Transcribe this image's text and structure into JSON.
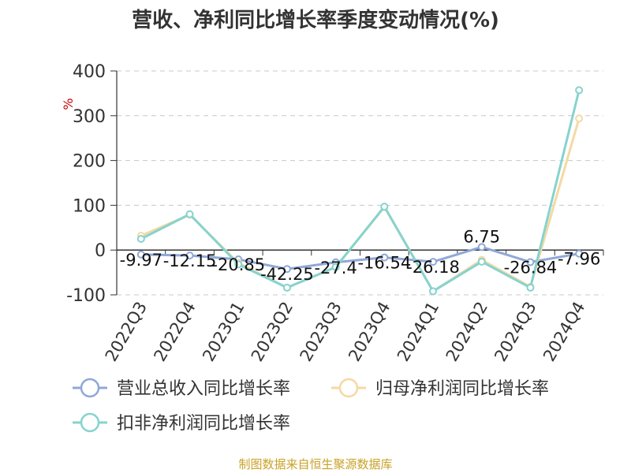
{
  "title": "营收、净利同比增长率季度变动情况(%)",
  "source": "制图数据来自恒生聚源数据库",
  "chart_data": {
    "type": "line",
    "title": "营收、净利同比增长率季度变动情况(%)",
    "ylabel": "%",
    "xlabel": "",
    "ylim": [
      -100,
      400
    ],
    "yticks": [
      400,
      300,
      200,
      100,
      0,
      -100
    ],
    "grid": true,
    "legend_position": "bottom",
    "categories": [
      "2022Q3",
      "2022Q4",
      "2023Q1",
      "2023Q2",
      "2023Q3",
      "2023Q4",
      "2024Q1",
      "2024Q2",
      "2024Q3",
      "2024Q4"
    ],
    "series": [
      {
        "name": "营业总收入同比增长率",
        "color": "#8fa8d8",
        "values": [
          -9.97,
          -12.15,
          -20.85,
          -42.25,
          -27.4,
          -16.54,
          -26.18,
          6.75,
          -26.84,
          -7.96
        ],
        "labels": [
          "-9.97",
          "-12.15",
          "-20.85",
          "-42.25",
          "-27.4",
          "-16.54",
          "-26.18",
          "6.75",
          "-26.84",
          "-7.96"
        ]
      },
      {
        "name": "归母净利润同比增长率",
        "color": "#f5d9a3",
        "values": [
          32,
          79,
          -29,
          -84,
          -38,
          96,
          -92,
          -22,
          -82,
          294
        ]
      },
      {
        "name": "扣非净利润同比增长率",
        "color": "#86d3cf",
        "values": [
          25,
          80,
          -32,
          -84,
          -38,
          97,
          -92,
          -26,
          -84,
          357
        ]
      }
    ]
  }
}
